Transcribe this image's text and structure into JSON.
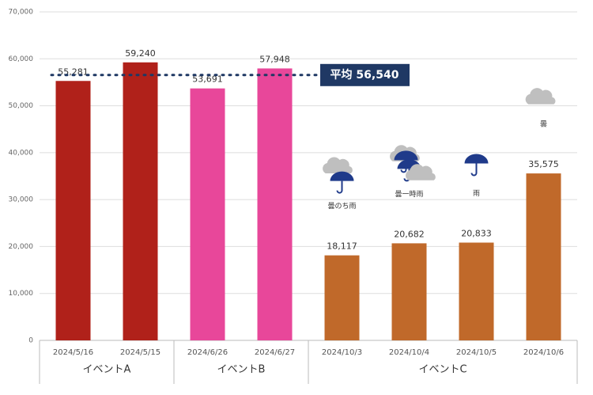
{
  "chart_data": {
    "type": "bar",
    "categories": [
      "2024/5/16",
      "2024/5/15",
      "2024/6/26",
      "2024/6/27",
      "2024/10/3",
      "2024/10/4",
      "2024/10/5",
      "2024/10/6"
    ],
    "groups": [
      {
        "label": "イベントA",
        "span": [
          0,
          1
        ]
      },
      {
        "label": "イベントB",
        "span": [
          2,
          3
        ]
      },
      {
        "label": "イベントC",
        "span": [
          4,
          7
        ]
      }
    ],
    "values": [
      55281,
      59240,
      53691,
      57948,
      18117,
      20682,
      20833,
      35575
    ],
    "value_labels": [
      "55,281",
      "59,240",
      "53,691",
      "57,948",
      "18,117",
      "20,682",
      "20,833",
      "35,575"
    ],
    "colors": [
      "#b0211a",
      "#b0211a",
      "#e8479a",
      "#e8479a",
      "#c0692a",
      "#c0692a",
      "#c0692a",
      "#c0692a"
    ],
    "weather": [
      null,
      null,
      null,
      null,
      "曇のち雨",
      "曇一時雨",
      "雨",
      "曇"
    ],
    "average": {
      "value": 56540,
      "label": "平均 56,540"
    },
    "ylim": [
      0,
      70000
    ],
    "yticks": [
      0,
      {
        "value": 10000,
        "label": "10,000"
      },
      {
        "value": 20000,
        "label": "20,000"
      },
      {
        "value": 30000,
        "label": "30,000"
      },
      {
        "value": 40000,
        "label": "40,000"
      },
      {
        "value": 50000,
        "label": "50,000"
      },
      {
        "value": 60000,
        "label": "60,000"
      },
      {
        "value": 70000,
        "label": "70,000"
      }
    ],
    "grid": true
  }
}
